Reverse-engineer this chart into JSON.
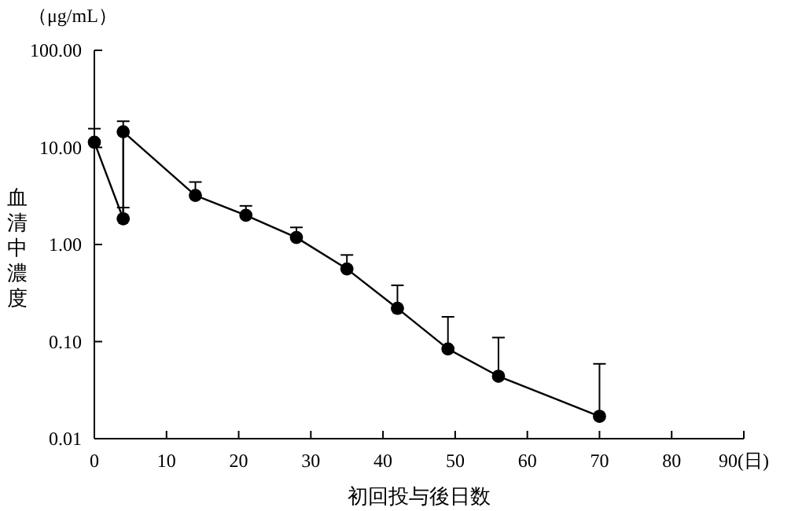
{
  "chart_data": {
    "type": "line",
    "xlabel": "初回投与後日数",
    "ylabel": "血清中濃度",
    "annotations": [
      "（μg/mL）"
    ],
    "x": [
      0,
      4,
      4,
      14,
      21,
      28,
      35,
      42,
      49,
      56,
      70
    ],
    "series": [
      {
        "color": "#000000",
        "values": [
          11.3,
          1.84,
          14.5,
          3.2,
          2.0,
          1.18,
          0.56,
          0.22,
          0.084,
          0.044,
          0.017
        ],
        "errors": [
          [
            11.3,
            15.6
          ],
          [
            1.84,
            2.4
          ],
          [
            14.5,
            18.6
          ],
          [
            3.2,
            4.4
          ],
          [
            2.0,
            2.5
          ],
          [
            1.18,
            1.5
          ],
          [
            0.56,
            0.78
          ],
          [
            0.22,
            0.38
          ],
          [
            0.084,
            0.18
          ],
          [
            0.044,
            0.11
          ],
          [
            0.017,
            0.059
          ]
        ]
      }
    ],
    "xlim": [
      0,
      90
    ],
    "xticks": [
      0,
      10,
      20,
      30,
      40,
      50,
      60,
      70,
      80,
      {
        "value": 90,
        "label": "90(日)"
      }
    ],
    "ylim": [
      0.01,
      100
    ],
    "yticks": [
      0.01,
      {
        "value": 0.1,
        "label": "0.10"
      },
      {
        "value": 1,
        "label": "1.00"
      },
      {
        "value": 10,
        "label": "10.00"
      },
      {
        "value": 100,
        "label": "100.00"
      }
    ],
    "log": true,
    "marker": "circle",
    "line_style": "solid"
  }
}
